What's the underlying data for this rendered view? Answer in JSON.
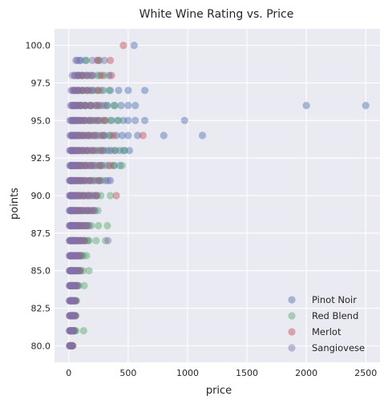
{
  "chart_data": {
    "type": "scatter",
    "title": "White Wine Rating vs. Price",
    "xlabel": "price",
    "ylabel": "points",
    "xlim": [
      -120,
      2620
    ],
    "ylim": [
      78.9,
      101.1
    ],
    "xticks": [
      0,
      500,
      1000,
      1500,
      2000,
      2500
    ],
    "yticks": [
      80.0,
      82.5,
      85.0,
      87.5,
      90.0,
      92.5,
      95.0,
      97.5,
      100.0
    ],
    "xtick_labels": [
      "0",
      "500",
      "1000",
      "1500",
      "2000",
      "2500"
    ],
    "ytick_labels": [
      "80.0",
      "82.5",
      "85.0",
      "87.5",
      "90.0",
      "92.5",
      "95.0",
      "97.5",
      "100.0"
    ],
    "grid": true,
    "legend_position": "bottom-right",
    "background": "#eaeaf2",
    "series": [
      {
        "name": "Pinot Noir",
        "color": "#4c72b0",
        "points": [
          {
            "points": 80,
            "prices": [
              10,
              18,
              25,
              32
            ]
          },
          {
            "points": 81,
            "prices": [
              10,
              20,
              30,
              40,
              50
            ]
          },
          {
            "points": 82,
            "prices": [
              10,
              20,
              30,
              40,
              55
            ]
          },
          {
            "points": 83,
            "prices": [
              10,
              20,
              30,
              45,
              60
            ]
          },
          {
            "points": 84,
            "prices": [
              10,
              20,
              30,
              45,
              60,
              75
            ]
          },
          {
            "points": 85,
            "prices": [
              10,
              20,
              30,
              45,
              60,
              80,
              100
            ]
          },
          {
            "points": 86,
            "prices": [
              10,
              20,
              35,
              50,
              70,
              90,
              110
            ]
          },
          {
            "points": 87,
            "prices": [
              10,
              25,
              40,
              60,
              80,
              100,
              130,
              160
            ]
          },
          {
            "points": 88,
            "prices": [
              12,
              25,
              40,
              60,
              80,
              105,
              135,
              170
            ]
          },
          {
            "points": 89,
            "prices": [
              15,
              30,
              45,
              65,
              90,
              115,
              145,
              180,
              220
            ]
          },
          {
            "points": 90,
            "prices": [
              15,
              30,
              50,
              70,
              95,
              125,
              160,
              200,
              240
            ]
          },
          {
            "points": 91,
            "prices": [
              15,
              30,
              50,
              75,
              100,
              130,
              170,
              210,
              260,
              310,
              350
            ]
          },
          {
            "points": 92,
            "prices": [
              20,
              35,
              55,
              80,
              110,
              140,
              180,
              225,
              275,
              330,
              380,
              430
            ]
          },
          {
            "points": 93,
            "prices": [
              20,
              40,
              60,
              85,
              115,
              150,
              190,
              240,
              290,
              340,
              390,
              430,
              470,
              510
            ]
          },
          {
            "points": 94,
            "prices": [
              25,
              45,
              65,
              95,
              125,
              160,
              200,
              250,
              300,
              350,
              400,
              450,
              500,
              580,
              800,
              1125
            ]
          },
          {
            "points": 95,
            "prices": [
              25,
              45,
              70,
              100,
              130,
              170,
              210,
              260,
              310,
              360,
              410,
              460,
              500,
              560,
              640,
              975
            ]
          },
          {
            "points": 96,
            "prices": [
              30,
              50,
              75,
              105,
              140,
              180,
              225,
              275,
              325,
              380,
              440,
              500,
              560,
              2000,
              2500
            ]
          },
          {
            "points": 97,
            "prices": [
              35,
              60,
              85,
              115,
              150,
              190,
              240,
              290,
              350,
              420,
              500,
              640
            ]
          },
          {
            "points": 98,
            "prices": [
              50,
              80,
              110,
              150,
              200,
              260,
              340
            ]
          },
          {
            "points": 99,
            "prices": [
              70,
              100,
              140,
              250
            ]
          },
          {
            "points": 100,
            "prices": [
              550
            ]
          }
        ]
      },
      {
        "name": "Red Blend",
        "color": "#55a868",
        "points": [
          {
            "points": 80,
            "prices": [
              12,
              22,
              35
            ]
          },
          {
            "points": 81,
            "prices": [
              15,
              30,
              45,
              60,
              125
            ]
          },
          {
            "points": 82,
            "prices": [
              15,
              30,
              45,
              60
            ]
          },
          {
            "points": 83,
            "prices": [
              15,
              30,
              45,
              65
            ]
          },
          {
            "points": 84,
            "prices": [
              15,
              30,
              45,
              65,
              85,
              130
            ]
          },
          {
            "points": 85,
            "prices": [
              15,
              30,
              50,
              70,
              95,
              120,
              170
            ]
          },
          {
            "points": 86,
            "prices": [
              15,
              35,
              55,
              75,
              100,
              125,
              150
            ]
          },
          {
            "points": 87,
            "prices": [
              20,
              40,
              60,
              85,
              110,
              140,
              170,
              230,
              310
            ]
          },
          {
            "points": 88,
            "prices": [
              20,
              40,
              65,
              90,
              120,
              150,
              190,
              250,
              325
            ]
          },
          {
            "points": 89,
            "prices": [
              20,
              45,
              70,
              95,
              125,
              160,
              200,
              245
            ]
          },
          {
            "points": 90,
            "prices": [
              25,
              45,
              70,
              100,
              130,
              170,
              220,
              270,
              350
            ]
          },
          {
            "points": 91,
            "prices": [
              25,
              50,
              75,
              105,
              140,
              180,
              230,
              280
            ]
          },
          {
            "points": 92,
            "prices": [
              25,
              50,
              80,
              110,
              150,
              200,
              250,
              300,
              380,
              450
            ]
          },
          {
            "points": 93,
            "prices": [
              30,
              55,
              85,
              120,
              160,
              210,
              260,
              320,
              390,
              460
            ]
          },
          {
            "points": 94,
            "prices": [
              30,
              60,
              90,
              125,
              170,
              220,
              280,
              340
            ]
          },
          {
            "points": 95,
            "prices": [
              35,
              65,
              95,
              130,
              175,
              225,
              290,
              350,
              420
            ]
          },
          {
            "points": 96,
            "prices": [
              40,
              70,
              100,
              140,
              190,
              250,
              320,
              390
            ]
          },
          {
            "points": 97,
            "prices": [
              50,
              80,
              115,
              160,
              210,
              270,
              340
            ]
          },
          {
            "points": 98,
            "prices": [
              70,
              110,
              160,
              240,
              300
            ]
          },
          {
            "points": 99,
            "prices": [
              150,
              260
            ]
          }
        ]
      },
      {
        "name": "Merlot",
        "color": "#c44e52",
        "points": [
          {
            "points": 80,
            "prices": [
              10,
              20,
              30
            ]
          },
          {
            "points": 81,
            "prices": [
              12,
              25,
              40
            ]
          },
          {
            "points": 82,
            "prices": [
              12,
              25,
              40,
              55
            ]
          },
          {
            "points": 83,
            "prices": [
              12,
              25,
              40,
              55
            ]
          },
          {
            "points": 84,
            "prices": [
              12,
              25,
              40,
              60
            ]
          },
          {
            "points": 85,
            "prices": [
              15,
              30,
              45,
              65,
              90
            ]
          },
          {
            "points": 86,
            "prices": [
              15,
              30,
              50,
              70,
              95
            ]
          },
          {
            "points": 87,
            "prices": [
              15,
              35,
              55,
              75,
              100,
              130
            ]
          },
          {
            "points": 88,
            "prices": [
              15,
              35,
              55,
              80,
              110,
              150
            ]
          },
          {
            "points": 89,
            "prices": [
              20,
              40,
              60,
              85,
              115,
              160,
              200
            ]
          },
          {
            "points": 90,
            "prices": [
              20,
              40,
              65,
              90,
              125,
              170,
              230,
              400
            ]
          },
          {
            "points": 91,
            "prices": [
              20,
              45,
              70,
              95,
              130,
              180,
              250
            ]
          },
          {
            "points": 92,
            "prices": [
              25,
              50,
              75,
              100,
              140,
              190,
              260,
              350
            ]
          },
          {
            "points": 93,
            "prices": [
              25,
              50,
              80,
              110,
              150,
              200,
              270
            ]
          },
          {
            "points": 94,
            "prices": [
              30,
              55,
              85,
              120,
              165,
              215,
              280,
              375,
              625
            ]
          },
          {
            "points": 95,
            "prices": [
              35,
              60,
              90,
              130,
              180,
              240,
              300
            ]
          },
          {
            "points": 96,
            "prices": [
              40,
              70,
              100,
              140,
              190,
              250
            ]
          },
          {
            "points": 97,
            "prices": [
              50,
              80,
              120,
              170,
              250
            ]
          },
          {
            "points": 98,
            "prices": [
              80,
              120,
              180,
              280,
              360
            ]
          },
          {
            "points": 99,
            "prices": [
              240,
              350
            ]
          },
          {
            "points": 100,
            "prices": [
              460
            ]
          }
        ]
      },
      {
        "name": "Sangiovese",
        "color": "#8172b2",
        "points": [
          {
            "points": 80,
            "prices": [
              5,
              12,
              20,
              28
            ]
          },
          {
            "points": 81,
            "prices": [
              5,
              12,
              20,
              30,
              40
            ]
          },
          {
            "points": 82,
            "prices": [
              5,
              12,
              20,
              30,
              40,
              50
            ]
          },
          {
            "points": 83,
            "prices": [
              5,
              12,
              20,
              30,
              40,
              55
            ]
          },
          {
            "points": 84,
            "prices": [
              5,
              12,
              20,
              30,
              40,
              55,
              70
            ]
          },
          {
            "points": 85,
            "prices": [
              5,
              12,
              20,
              30,
              40,
              55,
              70,
              85
            ]
          },
          {
            "points": 86,
            "prices": [
              5,
              12,
              20,
              30,
              45,
              60,
              75,
              95
            ]
          },
          {
            "points": 87,
            "prices": [
              5,
              12,
              20,
              30,
              45,
              60,
              80,
              100,
              125,
              330
            ]
          },
          {
            "points": 88,
            "prices": [
              5,
              12,
              20,
              30,
              45,
              60,
              80,
              105,
              130,
              160
            ]
          },
          {
            "points": 89,
            "prices": [
              5,
              12,
              20,
              30,
              45,
              65,
              85,
              110,
              140,
              170,
              215
            ]
          },
          {
            "points": 90,
            "prices": [
              5,
              12,
              20,
              30,
              45,
              65,
              90,
              115,
              150,
              190,
              230
            ]
          },
          {
            "points": 91,
            "prices": [
              5,
              12,
              20,
              35,
              50,
              70,
              95,
              120,
              155,
              200,
              260,
              330
            ]
          },
          {
            "points": 92,
            "prices": [
              8,
              15,
              25,
              35,
              50,
              70,
              95,
              125,
              165,
              210,
              275
            ]
          },
          {
            "points": 93,
            "prices": [
              8,
              15,
              25,
              40,
              55,
              75,
              100,
              130,
              170,
              220,
              290,
              360
            ]
          },
          {
            "points": 94,
            "prices": [
              10,
              20,
              30,
              45,
              60,
              80,
              105,
              140,
              180,
              230,
              300
            ]
          },
          {
            "points": 95,
            "prices": [
              10,
              20,
              35,
              50,
              70,
              90,
              115,
              150,
              195,
              250
            ]
          },
          {
            "points": 96,
            "prices": [
              15,
              25,
              40,
              60,
              80,
              105,
              135,
              175,
              230,
              300
            ]
          },
          {
            "points": 97,
            "prices": [
              20,
              35,
              55,
              80,
              110,
              150,
              200
            ]
          },
          {
            "points": 98,
            "prices": [
              30,
              50,
              80,
              110,
              150,
              200
            ]
          },
          {
            "points": 99,
            "prices": [
              60,
              90,
              200,
              300
            ]
          },
          {
            "points": 100,
            "prices": []
          }
        ]
      }
    ]
  }
}
